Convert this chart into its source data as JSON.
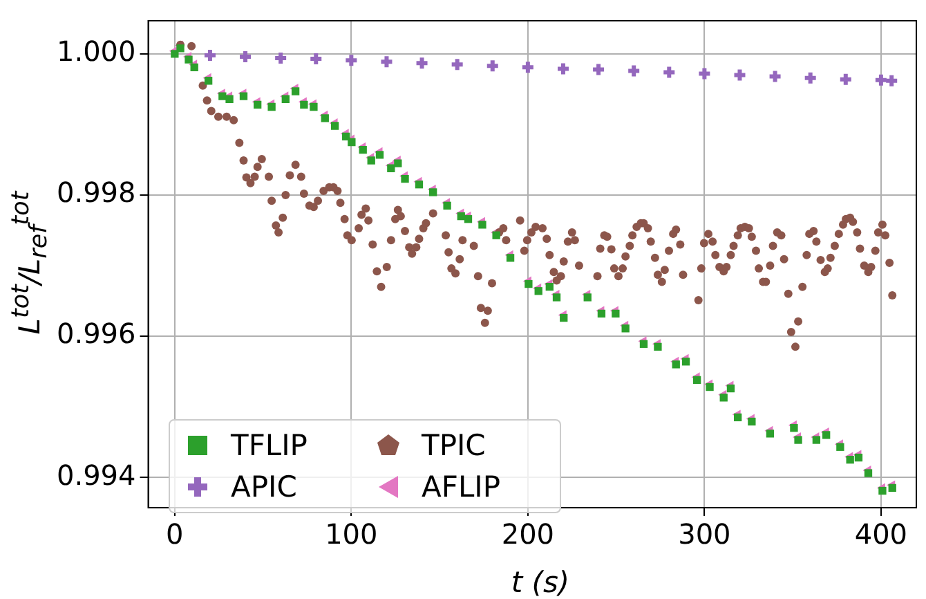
{
  "chart_data": {
    "type": "scatter",
    "xlabel": "t (s)",
    "ylabel": "L$^{tot}$/L$_{ref}$$^{tot}$",
    "xlim": [
      -15,
      420
    ],
    "ylim": [
      0.99357,
      1.00047
    ],
    "xticks": [
      0,
      100,
      200,
      300,
      400
    ],
    "yticks": [
      0.994,
      0.996,
      0.998,
      {
        "value": 1,
        "label": "1.000"
      }
    ],
    "grid": true,
    "legend": "bottom left",
    "series": [
      {
        "name": "TFLIP",
        "color": "#2ca02c",
        "marker": "square",
        "x": [
          0,
          3.2,
          7.9,
          11.1,
          19.1,
          27,
          31,
          39,
          46.9,
          54.9,
          62.8,
          68.4,
          73.2,
          78.7,
          85.1,
          90.7,
          97,
          100.2,
          106.6,
          111.3,
          116.1,
          122.5,
          126.4,
          130.4,
          138.4,
          146.3,
          154.3,
          162.2,
          166.2,
          174.2,
          182.1,
          190.1,
          200.4,
          206,
          212.3,
          216.3,
          220.3,
          233.8,
          241.7,
          249.7,
          255.3,
          265.6,
          273.6,
          283.9,
          289.5,
          295.8,
          303,
          310.9,
          314.9,
          318.9,
          326.8,
          337.2,
          350.7,
          353.1,
          363.4,
          369,
          376.9,
          382.5,
          387.3,
          392.8,
          400.8,
          406.4
        ],
        "values": [
          1,
          1.00008,
          0.99992,
          0.99981,
          0.99962,
          0.9994,
          0.99936,
          0.9994,
          0.99928,
          0.99925,
          0.99936,
          0.99947,
          0.99928,
          0.99925,
          0.99909,
          0.99898,
          0.99883,
          0.99875,
          0.99864,
          0.99849,
          0.99857,
          0.99838,
          0.99845,
          0.99823,
          0.99815,
          0.99804,
          0.99785,
          0.9977,
          0.99766,
          0.99758,
          0.99743,
          0.99711,
          0.99674,
          0.99664,
          0.9967,
          0.99655,
          0.99626,
          0.99655,
          0.99632,
          0.99632,
          0.99611,
          0.99589,
          0.99585,
          0.9956,
          0.99564,
          0.99538,
          0.99528,
          0.99513,
          0.99526,
          0.99485,
          0.99479,
          0.99462,
          0.9947,
          0.99453,
          0.99453,
          0.9946,
          0.99443,
          0.99425,
          0.99428,
          0.99406,
          0.99381,
          0.99385
        ]
      },
      {
        "name": "APIC",
        "color": "#9467bd",
        "marker": "cross",
        "x": [
          20,
          40,
          60,
          80,
          100,
          120,
          140,
          160,
          180,
          200,
          220,
          240,
          260,
          280,
          300,
          320,
          340,
          360,
          380,
          400,
          406
        ],
        "values": [
          0.99998,
          0.99996,
          0.99994,
          0.99993,
          0.99991,
          0.99989,
          0.99987,
          0.99985,
          0.99983,
          0.99981,
          0.99979,
          0.99978,
          0.99976,
          0.99974,
          0.99972,
          0.9997,
          0.99968,
          0.99966,
          0.99964,
          0.99963,
          0.99962
        ]
      },
      {
        "name": "TPIC",
        "color": "#8c564b",
        "marker": "circle",
        "x": [
          3.2,
          9.5,
          15.9,
          18.3,
          20.7,
          24.7,
          29.4,
          33.4,
          36.6,
          39,
          40.6,
          42.9,
          45.3,
          46.9,
          49.3,
          53.3,
          54.9,
          57.3,
          58.8,
          61.2,
          62.8,
          65.2,
          68.4,
          71.6,
          73.2,
          76.3,
          78.7,
          81.1,
          84.3,
          87.5,
          89.9,
          92.2,
          93.8,
          96.2,
          97.8,
          100.2,
          104.2,
          105.8,
          108.2,
          109.7,
          112.1,
          114.5,
          116.9,
          120.1,
          122.5,
          124.9,
          126.4,
          128,
          130.4,
          132.8,
          134.4,
          136.8,
          138.4,
          140.8,
          142.3,
          146.3,
          153.5,
          155.1,
          156.7,
          159,
          161.4,
          163,
          169.4,
          171.8,
          173.4,
          175.7,
          177.3,
          179.7,
          183.7,
          186.1,
          187.7,
          195.6,
          198,
          199.6,
          202,
          204.4,
          208.3,
          210.7,
          212.3,
          214.7,
          216.3,
          218.7,
          220.3,
          222.7,
          225,
          226.6,
          229,
          239.4,
          241,
          243.3,
          244.9,
          247.3,
          248.9,
          251.3,
          253.7,
          255.3,
          257.7,
          259.2,
          261.6,
          264,
          265.6,
          268,
          269.6,
          272,
          273.6,
          275.9,
          277.5,
          279.9,
          282.3,
          283.9,
          286.3,
          287.9,
          296.6,
          298.2,
          299.8,
          302.2,
          304.6,
          306.2,
          308.5,
          310.9,
          312.5,
          314.9,
          316.5,
          318.9,
          320.5,
          322.9,
          325.2,
          326.8,
          329.2,
          330.8,
          333.2,
          334.8,
          337.2,
          338.8,
          341.2,
          343.5,
          345.1,
          347.5,
          349.1,
          351.5,
          353.1,
          355.5,
          357.9,
          359.4,
          361.8,
          363.4,
          365.8,
          368.2,
          369.8,
          371.4,
          373.8,
          376.1,
          378.5,
          380.1,
          382.5,
          384.1,
          386.5,
          388.1,
          390.5,
          392.8,
          394.4,
          396.8,
          398.4,
          400.8,
          402.4,
          404.8,
          406.4
        ],
        "values": [
          1.00013,
          1.00011,
          0.99955,
          0.99934,
          0.99919,
          0.99911,
          0.99911,
          0.99906,
          0.99874,
          0.99849,
          0.99825,
          0.99817,
          0.99826,
          0.9984,
          0.99851,
          0.99826,
          0.99792,
          0.99757,
          0.99747,
          0.99768,
          0.998,
          0.99828,
          0.99843,
          0.99826,
          0.99802,
          0.99785,
          0.99783,
          0.99792,
          0.99806,
          0.99811,
          0.99811,
          0.99806,
          0.99789,
          0.99766,
          0.99743,
          0.99736,
          0.99753,
          0.99772,
          0.99781,
          0.99764,
          0.9973,
          0.99692,
          0.9967,
          0.99698,
          0.99736,
          0.99766,
          0.99779,
          0.9977,
          0.99749,
          0.99726,
          0.99717,
          0.99726,
          0.99738,
          0.99753,
          0.9976,
          0.99774,
          0.99743,
          0.99719,
          0.99696,
          0.99689,
          0.99709,
          0.99736,
          0.99728,
          0.99685,
          0.9964,
          0.99619,
          0.99636,
          0.99675,
          0.99747,
          0.99753,
          0.99736,
          0.99764,
          0.99721,
          0.99736,
          0.99747,
          0.99755,
          0.99753,
          0.99738,
          0.99715,
          0.99691,
          0.99679,
          0.99685,
          0.99706,
          0.99734,
          0.99747,
          0.99736,
          0.997,
          0.99685,
          0.99724,
          0.99743,
          0.99741,
          0.99723,
          0.99696,
          0.99685,
          0.99696,
          0.99713,
          0.99728,
          0.99743,
          0.99755,
          0.9976,
          0.9976,
          0.99753,
          0.99734,
          0.99711,
          0.99687,
          0.99677,
          0.99694,
          0.99721,
          0.99745,
          0.99751,
          0.9973,
          0.99687,
          0.99651,
          0.99696,
          0.99732,
          0.99745,
          0.99734,
          0.99715,
          0.99698,
          0.99692,
          0.99698,
          0.99715,
          0.99728,
          0.99743,
          0.99753,
          0.99755,
          0.99753,
          0.99741,
          0.99721,
          0.99696,
          0.99677,
          0.99677,
          0.997,
          0.99728,
          0.99747,
          0.99743,
          0.99709,
          0.9966,
          0.99606,
          0.99585,
          0.99621,
          0.9967,
          0.99715,
          0.99745,
          0.99749,
          0.99734,
          0.99708,
          0.99691,
          0.99696,
          0.99711,
          0.99728,
          0.99745,
          0.99758,
          0.99766,
          0.99768,
          0.99762,
          0.99747,
          0.99724,
          0.997,
          0.99691,
          0.99698,
          0.99721,
          0.99747,
          0.99758,
          0.99743,
          0.99704,
          0.99658
        ]
      },
      {
        "name": "AFLIP",
        "color": "#e377c2",
        "marker": "triangle",
        "x": [
          0,
          3.2,
          7.9,
          11.1,
          19.1,
          27,
          31,
          39,
          46.9,
          54.9,
          62.8,
          68.4,
          73.2,
          78.7,
          85.1,
          90.7,
          97,
          100.2,
          106.6,
          111.3,
          116.1,
          122.5,
          126.4,
          130.4,
          138.4,
          146.3,
          154.3,
          162.2,
          166.2,
          174.2,
          182.1,
          190.1,
          200.4,
          206,
          212.3,
          216.3,
          220.3,
          233.8,
          241.7,
          249.7,
          255.3,
          265.6,
          273.6,
          283.9,
          289.5,
          295.8,
          303,
          310.9,
          314.9,
          318.9,
          326.8,
          337.2,
          350.7,
          353.1,
          363.4,
          369,
          376.9,
          382.5,
          387.3,
          392.8,
          400.8,
          406.4
        ],
        "values": [
          1.00004,
          1.00012,
          0.99996,
          0.99985,
          0.99966,
          0.99944,
          0.9994,
          0.99944,
          0.99932,
          0.99929,
          0.9994,
          0.99951,
          0.99932,
          0.99929,
          0.99913,
          0.99902,
          0.99887,
          0.99879,
          0.99868,
          0.99853,
          0.99861,
          0.99842,
          0.99849,
          0.99827,
          0.99819,
          0.99808,
          0.99789,
          0.99774,
          0.9977,
          0.99762,
          0.99747,
          0.99715,
          0.99678,
          0.99668,
          0.99674,
          0.99659,
          0.9963,
          0.99659,
          0.99636,
          0.99636,
          0.99615,
          0.99593,
          0.99589,
          0.99564,
          0.99568,
          0.99542,
          0.99532,
          0.99517,
          0.9953,
          0.99489,
          0.99483,
          0.99466,
          0.99474,
          0.99457,
          0.99457,
          0.99464,
          0.99447,
          0.99429,
          0.99432,
          0.9941,
          0.99385,
          0.99389
        ]
      }
    ]
  }
}
